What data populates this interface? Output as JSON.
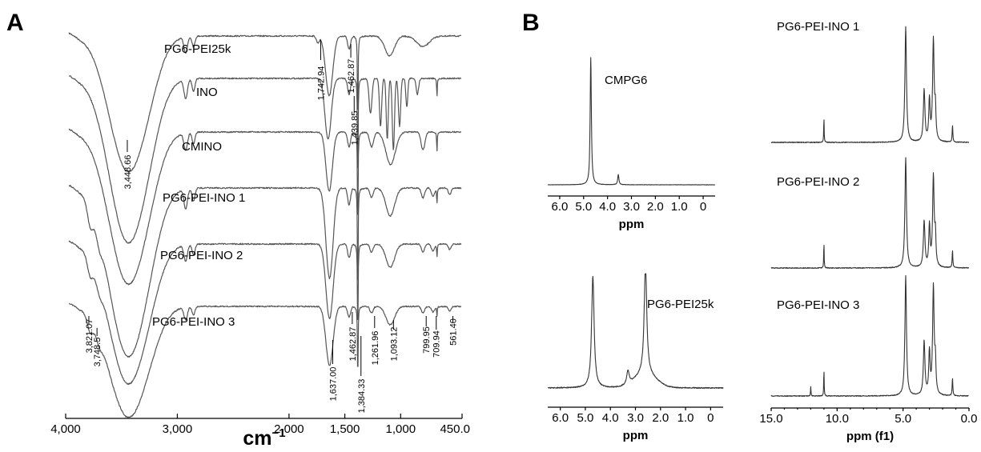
{
  "chart_data": [
    {
      "type": "line",
      "panel_label": "A",
      "xlabel_main": "cm",
      "xlabel_sup": "−1",
      "xlim": [
        4000,
        450
      ],
      "x_ticks": [
        4000,
        3000,
        2000,
        1500,
        1000,
        450
      ],
      "x_tick_labels": [
        "4,000",
        "3,000",
        "2,000",
        "1,500",
        "1,000",
        "450.0"
      ],
      "series": [
        {
          "name": "PG6-PEI25k",
          "kind": "pei25k"
        },
        {
          "name": "INO",
          "kind": "ino"
        },
        {
          "name": "CMINO",
          "kind": "cmino"
        },
        {
          "name": "PG6-PEI-INO 1",
          "kind": "pei_ino"
        },
        {
          "name": "PG6-PEI-INO 2",
          "kind": "pei_ino"
        },
        {
          "name": "PG6-PEI-INO 3",
          "kind": "pei_ino"
        }
      ],
      "annotations": [
        {
          "text": "1,742.94",
          "x": 1742.94
        },
        {
          "text": "1,462.87",
          "x": 1462.87
        },
        {
          "text": "1,439.85",
          "x": 1439.85
        },
        {
          "text": "3,448.66",
          "x": 3448.66
        },
        {
          "text": "3,821.07",
          "x": 3821.07
        },
        {
          "text": "3,748.5",
          "x": 3748.5
        },
        {
          "text": "1,637.00",
          "x": 1637.0
        },
        {
          "text": "1,462.87",
          "x": 1462.87
        },
        {
          "text": "1,384.33",
          "x": 1384.33
        },
        {
          "text": "1,261.96",
          "x": 1261.96
        },
        {
          "text": "1,093.12",
          "x": 1093.12
        },
        {
          "text": "799.95",
          "x": 799.95
        },
        {
          "text": "709.94",
          "x": 709.94
        },
        {
          "text": "561.40",
          "x": 561.4
        }
      ]
    },
    {
      "type": "line",
      "panel_label": "B",
      "spectra": [
        {
          "name": "CMPG6",
          "xlabel": "ppm",
          "xlim": [
            6.5,
            -0.5
          ],
          "x_ticks": [
            6.0,
            5.0,
            4.0,
            3.0,
            2.0,
            1.0,
            0
          ],
          "x_tick_labels": [
            "6.0",
            "5.0",
            "4.0",
            "3.0",
            "2.0",
            "1.0",
            "0"
          ],
          "peaks": [
            {
              "x": 4.7,
              "h": 1.0
            },
            {
              "x": 3.55,
              "h": 0.08
            }
          ]
        },
        {
          "name": "PG6-PEI25k",
          "xlabel": "ppm",
          "xlim": [
            6.5,
            -0.5
          ],
          "x_ticks": [
            6.0,
            5.0,
            4.0,
            3.0,
            2.0,
            1.0,
            0
          ],
          "x_tick_labels": [
            "6.0",
            "5.0",
            "4.0",
            "3.0",
            "2.0",
            "1.0",
            "0"
          ],
          "peaks": [
            {
              "x": 4.7,
              "h": 1.0
            },
            {
              "x": 2.6,
              "h": 1.0
            },
            {
              "x": 3.3,
              "h": 0.12
            }
          ]
        },
        {
          "name": "PG6-PEI-INO 1",
          "peaks": [
            {
              "x": 4.8,
              "h": 1.0
            },
            {
              "x": 2.7,
              "h": 0.88
            },
            {
              "x": 3.4,
              "h": 0.45
            }
          ]
        },
        {
          "name": "PG6-PEI-INO 2",
          "peaks": [
            {
              "x": 4.8,
              "h": 0.95
            },
            {
              "x": 2.7,
              "h": 0.78
            },
            {
              "x": 3.4,
              "h": 0.4
            }
          ]
        },
        {
          "name": "PG6-PEI-INO 3",
          "xlabel": "ppm (f1)",
          "xlim": [
            15.0,
            0.0
          ],
          "x_ticks": [
            15.0,
            10.0,
            5.0,
            0.0
          ],
          "x_tick_labels": [
            "15.0",
            "10.0",
            "5.0",
            "0.0"
          ],
          "peaks": [
            {
              "x": 4.8,
              "h": 1.0
            },
            {
              "x": 2.7,
              "h": 0.9
            },
            {
              "x": 3.4,
              "h": 0.45
            }
          ]
        }
      ]
    }
  ]
}
